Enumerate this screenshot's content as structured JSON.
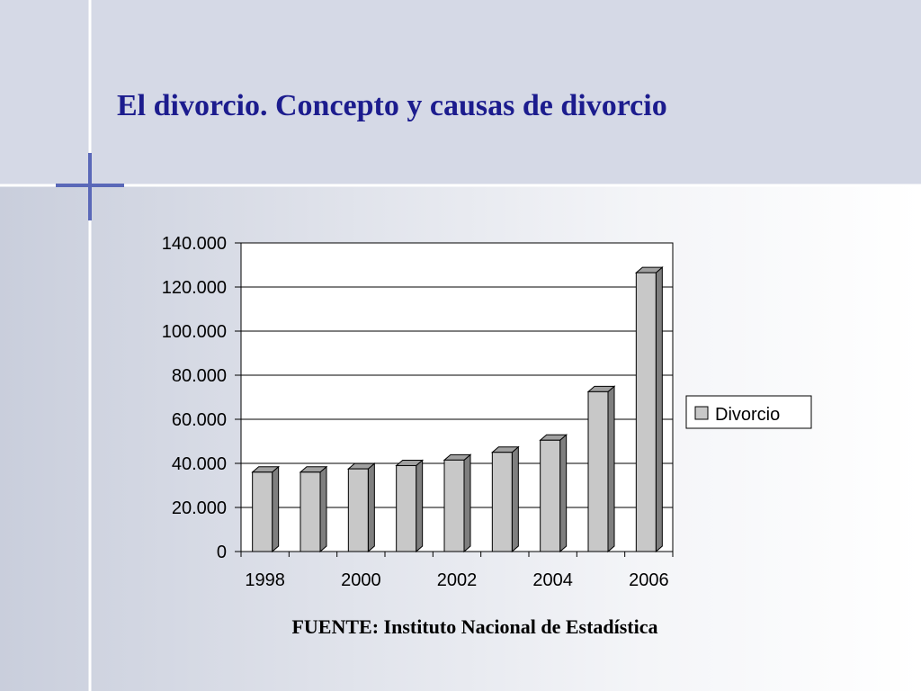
{
  "title": "El divorcio. Concepto y causas de divorcio",
  "source": "FUENTE: Instituto Nacional de Estadística",
  "chart_data": {
    "type": "bar",
    "categories": [
      "1998",
      null,
      "2000",
      null,
      "2002",
      null,
      "2004",
      null,
      "2006"
    ],
    "series": [
      {
        "name": "Divorcio",
        "color": "#c8c8c8",
        "values": [
          36000,
          36000,
          37500,
          39000,
          41500,
          45000,
          50500,
          72500,
          126500
        ]
      }
    ],
    "ylim": [
      0,
      140000
    ],
    "yticks": [
      0,
      {
        "value": 20000,
        "label": "20.000"
      },
      {
        "value": 40000,
        "label": "40.000"
      },
      {
        "value": 60000,
        "label": "60.000"
      },
      {
        "value": 80000,
        "label": "80.000"
      },
      {
        "value": 100000,
        "label": "100.000"
      },
      {
        "value": 120000,
        "label": "120.000"
      },
      {
        "value": 140000,
        "label": "140.000"
      }
    ],
    "grid": true,
    "legend": "right"
  }
}
